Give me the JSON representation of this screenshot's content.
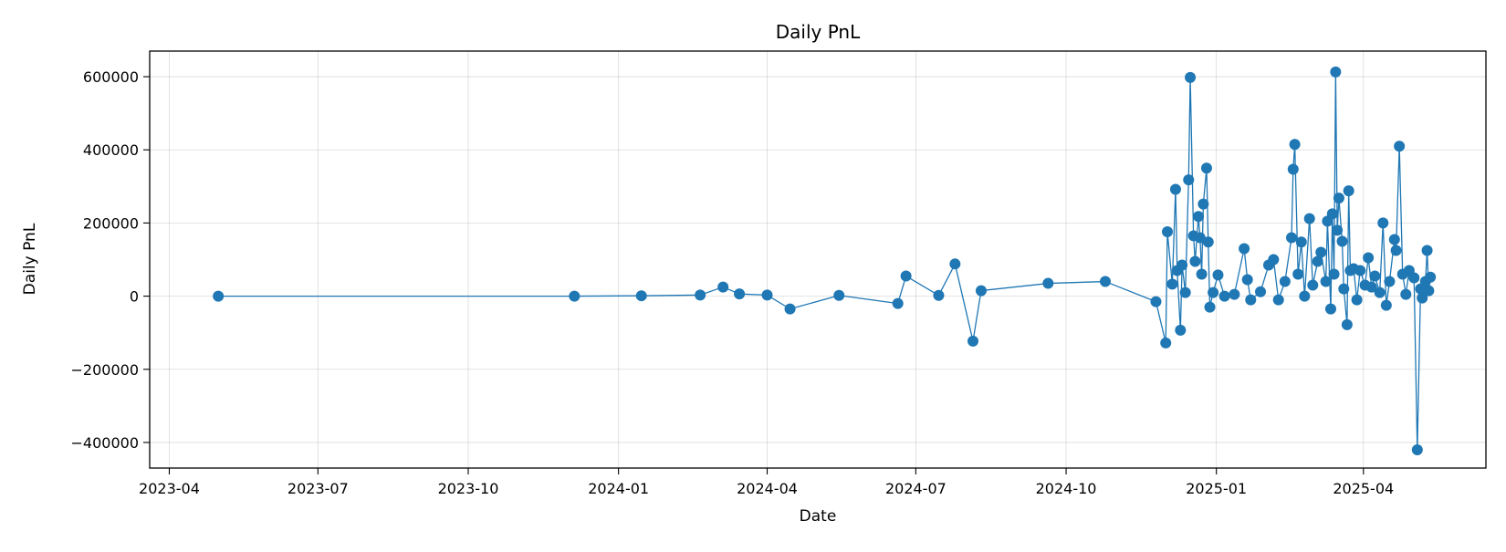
{
  "chart_data": {
    "type": "line",
    "title": "Daily PnL",
    "xlabel": "Date",
    "ylabel": "Daily PnL",
    "x_axis": "date",
    "xlim": [
      "2023-03-20",
      "2025-06-15"
    ],
    "ylim": [
      -470000,
      670000
    ],
    "xticks": [
      "2023-04-01",
      "2023-07-01",
      "2023-10-01",
      "2024-01-01",
      "2024-04-01",
      "2024-07-01",
      "2024-10-01",
      "2025-01-01",
      "2025-04-01"
    ],
    "xtick_labels": [
      "2023-04",
      "2023-07",
      "2023-10",
      "2024-01",
      "2024-04",
      "2024-07",
      "2024-10",
      "2025-01",
      "2025-04"
    ],
    "yticks": [
      -400000,
      -200000,
      0,
      200000,
      400000,
      600000
    ],
    "ytick_labels": [
      "−400000",
      "−200000",
      "0",
      "200000",
      "400000",
      "600000"
    ],
    "grid": true,
    "series_color": "#1f77b4",
    "series": [
      {
        "points": [
          [
            "2023-05-01",
            0
          ],
          [
            "2023-12-05",
            0
          ],
          [
            "2024-01-15",
            1000
          ],
          [
            "2024-02-20",
            3000
          ],
          [
            "2024-03-05",
            25000
          ],
          [
            "2024-03-15",
            6000
          ],
          [
            "2024-04-01",
            3000
          ],
          [
            "2024-04-15",
            -35000
          ],
          [
            "2024-05-15",
            2000
          ],
          [
            "2024-06-20",
            -20000
          ],
          [
            "2024-06-25",
            55000
          ],
          [
            "2024-07-15",
            2000
          ],
          [
            "2024-07-25",
            88000
          ],
          [
            "2024-08-05",
            -123000
          ],
          [
            "2024-08-10",
            15000
          ],
          [
            "2024-09-20",
            35000
          ],
          [
            "2024-10-25",
            40000
          ],
          [
            "2024-11-25",
            -15000
          ],
          [
            "2024-12-01",
            -128000
          ],
          [
            "2024-12-02",
            176000
          ],
          [
            "2024-12-05",
            33000
          ],
          [
            "2024-12-07",
            292000
          ],
          [
            "2024-12-08",
            70000
          ],
          [
            "2024-12-10",
            -93000
          ],
          [
            "2024-12-11",
            85000
          ],
          [
            "2024-12-13",
            10000
          ],
          [
            "2024-12-15",
            318000
          ],
          [
            "2024-12-16",
            598000
          ],
          [
            "2024-12-18",
            165000
          ],
          [
            "2024-12-19",
            95000
          ],
          [
            "2024-12-21",
            218000
          ],
          [
            "2024-12-22",
            160000
          ],
          [
            "2024-12-23",
            60000
          ],
          [
            "2024-12-24",
            252000
          ],
          [
            "2024-12-26",
            350000
          ],
          [
            "2024-12-27",
            148000
          ],
          [
            "2024-12-28",
            -30000
          ],
          [
            "2024-12-30",
            10000
          ],
          [
            "2025-01-02",
            58000
          ],
          [
            "2025-01-06",
            0
          ],
          [
            "2025-01-12",
            5000
          ],
          [
            "2025-01-18",
            130000
          ],
          [
            "2025-01-20",
            45000
          ],
          [
            "2025-01-22",
            -10000
          ],
          [
            "2025-01-28",
            12000
          ],
          [
            "2025-02-02",
            85000
          ],
          [
            "2025-02-05",
            100000
          ],
          [
            "2025-02-08",
            -10000
          ],
          [
            "2025-02-12",
            40000
          ],
          [
            "2025-02-16",
            160000
          ],
          [
            "2025-02-17",
            347000
          ],
          [
            "2025-02-18",
            415000
          ],
          [
            "2025-02-20",
            60000
          ],
          [
            "2025-02-22",
            148000
          ],
          [
            "2025-02-24",
            0
          ],
          [
            "2025-02-27",
            212000
          ],
          [
            "2025-03-01",
            30000
          ],
          [
            "2025-03-04",
            95000
          ],
          [
            "2025-03-06",
            120000
          ],
          [
            "2025-03-09",
            40000
          ],
          [
            "2025-03-10",
            205000
          ],
          [
            "2025-03-12",
            -35000
          ],
          [
            "2025-03-13",
            225000
          ],
          [
            "2025-03-14",
            60000
          ],
          [
            "2025-03-15",
            613000
          ],
          [
            "2025-03-16",
            180000
          ],
          [
            "2025-03-17",
            268000
          ],
          [
            "2025-03-19",
            150000
          ],
          [
            "2025-03-20",
            20000
          ],
          [
            "2025-03-22",
            -78000
          ],
          [
            "2025-03-23",
            288000
          ],
          [
            "2025-03-24",
            70000
          ],
          [
            "2025-03-26",
            75000
          ],
          [
            "2025-03-28",
            -10000
          ],
          [
            "2025-03-30",
            70000
          ],
          [
            "2025-04-02",
            30000
          ],
          [
            "2025-04-04",
            105000
          ],
          [
            "2025-04-06",
            25000
          ],
          [
            "2025-04-08",
            55000
          ],
          [
            "2025-04-11",
            10000
          ],
          [
            "2025-04-13",
            200000
          ],
          [
            "2025-04-15",
            -25000
          ],
          [
            "2025-04-17",
            40000
          ],
          [
            "2025-04-20",
            155000
          ],
          [
            "2025-04-21",
            125000
          ],
          [
            "2025-04-23",
            410000
          ],
          [
            "2025-04-25",
            60000
          ],
          [
            "2025-04-27",
            5000
          ],
          [
            "2025-04-29",
            70000
          ],
          [
            "2025-05-02",
            50000
          ],
          [
            "2025-05-04",
            -420000
          ],
          [
            "2025-05-06",
            20000
          ],
          [
            "2025-05-07",
            -5000
          ],
          [
            "2025-05-09",
            40000
          ],
          [
            "2025-05-10",
            125000
          ],
          [
            "2025-05-11",
            15000
          ],
          [
            "2025-05-12",
            52000
          ]
        ]
      }
    ]
  }
}
